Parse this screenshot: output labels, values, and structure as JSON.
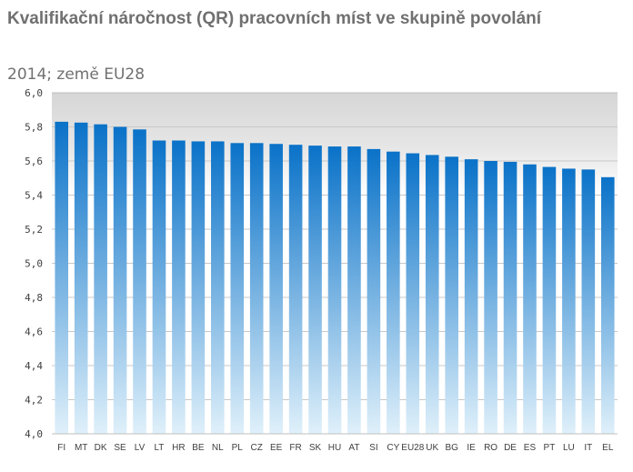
{
  "chart_data": {
    "type": "bar",
    "title": "Kvalifikační náročnost (QR) pracovních míst ve skupině povolání",
    "subtitle": "2014; země EU28",
    "categories": [
      "FI",
      "MT",
      "DK",
      "SE",
      "LV",
      "LT",
      "HR",
      "BE",
      "NL",
      "PL",
      "CZ",
      "EE",
      "FR",
      "SK",
      "HU",
      "AT",
      "SI",
      "CY",
      "EU28",
      "UK",
      "BG",
      "IE",
      "RO",
      "DE",
      "ES",
      "PT",
      "LU",
      "IT",
      "EL"
    ],
    "values": [
      5.83,
      5.825,
      5.815,
      5.8,
      5.785,
      5.72,
      5.72,
      5.715,
      5.715,
      5.705,
      5.705,
      5.7,
      5.695,
      5.69,
      5.685,
      5.685,
      5.67,
      5.655,
      5.645,
      5.635,
      5.625,
      5.61,
      5.6,
      5.595,
      5.58,
      5.565,
      5.555,
      5.55,
      5.505
    ],
    "ylim": [
      4.0,
      6.0
    ],
    "yticks": [
      "4,0",
      "4,2",
      "4,4",
      "4,6",
      "4,8",
      "5,0",
      "5,2",
      "5,4",
      "5,6",
      "5,8",
      "6,0"
    ],
    "grid": true,
    "colors": {
      "bar_top": "#0a72c8",
      "bar_bottom": "#dff0fa",
      "plot_bg_top": "#d9d9d9",
      "grid": "#ffffff",
      "text": "#707070"
    }
  }
}
